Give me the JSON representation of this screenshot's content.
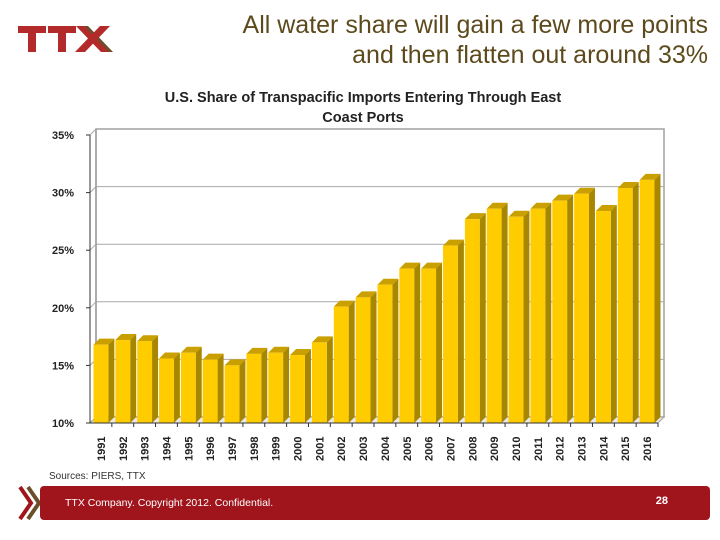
{
  "header": {
    "logo_text": "TTX",
    "headline_line1": "All water share will gain a few more points",
    "headline_line2": "and then flatten out around 33%"
  },
  "chart_data": {
    "type": "bar",
    "style": "3d-column",
    "title": "U.S. Share of Transpacific Imports Entering Through East Coast Ports",
    "title_line1": "U.S. Share of Transpacific Imports Entering Through East",
    "title_line2": "Coast Ports",
    "xlabel": "",
    "ylabel": "",
    "ylim": [
      10,
      35
    ],
    "yticks": [
      10,
      15,
      20,
      25,
      30,
      35
    ],
    "ytick_labels": [
      "10%",
      "15%",
      "20%",
      "25%",
      "30%",
      "35%"
    ],
    "grid": true,
    "legend": "none",
    "bar_color": "#ffcc00",
    "categories": [
      "1991",
      "1992",
      "1993",
      "1994",
      "1995",
      "1996",
      "1997",
      "1998",
      "1999",
      "2000",
      "2001",
      "2002",
      "2003",
      "2004",
      "2005",
      "2006",
      "2007",
      "2008",
      "2009",
      "2010",
      "2011",
      "2012",
      "2013",
      "2014",
      "2015",
      "2016"
    ],
    "values": [
      16.8,
      17.2,
      17.1,
      15.6,
      16.1,
      15.5,
      15.0,
      16.0,
      16.1,
      15.9,
      17.0,
      20.1,
      20.9,
      22.0,
      23.4,
      23.4,
      25.4,
      27.7,
      28.6,
      27.9,
      28.6,
      29.3,
      29.9,
      28.4,
      30.4,
      31.1
    ],
    "unit": "%"
  },
  "sources": "Sources: PIERS, TTX",
  "footer": {
    "text": "TTX Company. Copyright 2012. Confidential.",
    "page_number": "28",
    "color": "#a0141b"
  }
}
